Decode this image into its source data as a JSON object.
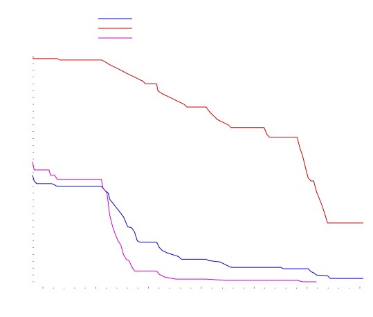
{
  "chart_data": {
    "type": "line",
    "title": "",
    "xlabel": "",
    "ylabel": "",
    "xlim": [
      0,
      120
    ],
    "ylim": [
      0,
      100
    ],
    "x_tick_count": 31,
    "y_tick_count": 34,
    "grid": false,
    "legend": {
      "placement": "top-left",
      "entries": [
        {
          "color": "#0000cc",
          "label": ""
        },
        {
          "color": "#cc0000",
          "label": ""
        },
        {
          "color": "#cc00cc",
          "label": ""
        }
      ]
    },
    "series": [
      {
        "color": "#0000cc",
        "points": [
          [
            0,
            47.3
          ],
          [
            0.6,
            44.8
          ],
          [
            1.5,
            43.6
          ],
          [
            7,
            43.6
          ],
          [
            8,
            43
          ],
          [
            9,
            42.4
          ],
          [
            25,
            42.4
          ],
          [
            26,
            40.9
          ],
          [
            27.5,
            39.4
          ],
          [
            28,
            36.7
          ],
          [
            30,
            33.6
          ],
          [
            31.5,
            31.2
          ],
          [
            33,
            28.8
          ],
          [
            34.5,
            24.5
          ],
          [
            36,
            23.9
          ],
          [
            37,
            22.1
          ],
          [
            38,
            18.2
          ],
          [
            39,
            17.6
          ],
          [
            45,
            17.6
          ],
          [
            46,
            15.2
          ],
          [
            47,
            14
          ],
          [
            48.5,
            13
          ],
          [
            50,
            12.4
          ],
          [
            53,
            11.2
          ],
          [
            54,
            10
          ],
          [
            63,
            10
          ],
          [
            64,
            9.4
          ],
          [
            68,
            8.8
          ],
          [
            70,
            7.6
          ],
          [
            72,
            6.4
          ],
          [
            90,
            6.4
          ],
          [
            91,
            5.8
          ],
          [
            100,
            5.8
          ],
          [
            101,
            4.5
          ],
          [
            102,
            4
          ],
          [
            103,
            3
          ],
          [
            107,
            2.7
          ],
          [
            108,
            1.5
          ],
          [
            120,
            1.5
          ]
        ]
      },
      {
        "color": "#cc0000",
        "points": [
          [
            0,
            99.5
          ],
          [
            0.6,
            99.1
          ],
          [
            9,
            99.1
          ],
          [
            10,
            98.5
          ],
          [
            25,
            98.5
          ],
          [
            26,
            97.9
          ],
          [
            28,
            96.4
          ],
          [
            30,
            95.2
          ],
          [
            32,
            94
          ],
          [
            34,
            92.7
          ],
          [
            36,
            91.5
          ],
          [
            38,
            90.3
          ],
          [
            40,
            89.1
          ],
          [
            41,
            87.9
          ],
          [
            45,
            87.9
          ],
          [
            45.5,
            84.8
          ],
          [
            47,
            83.6
          ],
          [
            49,
            82.4
          ],
          [
            51,
            81.2
          ],
          [
            53,
            80
          ],
          [
            55,
            78.8
          ],
          [
            56,
            77.6
          ],
          [
            63,
            77.6
          ],
          [
            64,
            75.8
          ],
          [
            65,
            74.5
          ],
          [
            66,
            73.3
          ],
          [
            67,
            72.1
          ],
          [
            69,
            70.9
          ],
          [
            71,
            69.7
          ],
          [
            72,
            68.5
          ],
          [
            84,
            68.5
          ],
          [
            85,
            65.5
          ],
          [
            86,
            64.2
          ],
          [
            96,
            64.2
          ],
          [
            97,
            59.4
          ],
          [
            98,
            55.8
          ],
          [
            99,
            50.9
          ],
          [
            100,
            46.1
          ],
          [
            101,
            44.8
          ],
          [
            102,
            44.8
          ],
          [
            103,
            40
          ],
          [
            104,
            37
          ],
          [
            105,
            33.9
          ],
          [
            106,
            30.3
          ],
          [
            107,
            26.1
          ],
          [
            120,
            26.1
          ]
        ]
      },
      {
        "color": "#cc00cc",
        "points": [
          [
            0,
            53.3
          ],
          [
            0.6,
            49.7
          ],
          [
            6,
            49.7
          ],
          [
            6.5,
            47.3
          ],
          [
            8,
            47.3
          ],
          [
            9,
            45.5
          ],
          [
            25,
            45.5
          ],
          [
            25.5,
            41.8
          ],
          [
            27,
            39.4
          ],
          [
            28,
            29.7
          ],
          [
            29,
            24.8
          ],
          [
            30,
            21.2
          ],
          [
            31,
            18.2
          ],
          [
            32,
            16.4
          ],
          [
            33,
            12.1
          ],
          [
            34,
            10
          ],
          [
            35,
            9.4
          ],
          [
            36,
            6.7
          ],
          [
            37,
            4.8
          ],
          [
            45,
            4.8
          ],
          [
            46,
            3.3
          ],
          [
            48,
            2.1
          ],
          [
            52,
            1.2
          ],
          [
            63,
            1.2
          ],
          [
            70,
            0.6
          ],
          [
            96,
            0.6
          ],
          [
            98,
            0
          ],
          [
            103,
            0
          ]
        ]
      }
    ]
  }
}
